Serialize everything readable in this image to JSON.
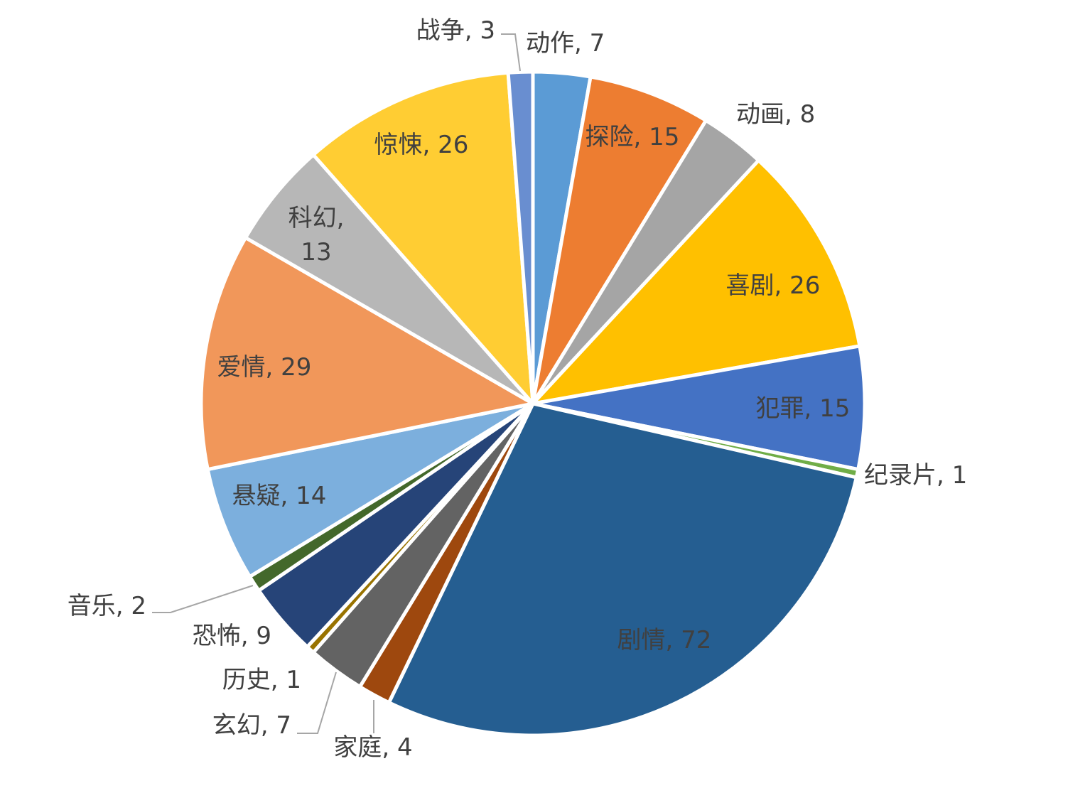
{
  "chart_data": {
    "type": "pie",
    "title": "",
    "start_angle_deg": 0,
    "direction": "clockwise",
    "label_format": "{name}, {value}",
    "slices": [
      {
        "name": "动作",
        "value": 7,
        "color": "#5b9bd5"
      },
      {
        "name": "探险",
        "value": 15,
        "color": "#ed7d31"
      },
      {
        "name": "动画",
        "value": 8,
        "color": "#a5a5a5"
      },
      {
        "name": "喜剧",
        "value": 26,
        "color": "#ffc000"
      },
      {
        "name": "犯罪",
        "value": 15,
        "color": "#4472c4"
      },
      {
        "name": "纪录片",
        "value": 1,
        "color": "#70ad47"
      },
      {
        "name": "剧情",
        "value": 72,
        "color": "#255e91"
      },
      {
        "name": "家庭",
        "value": 4,
        "color": "#9e480e"
      },
      {
        "name": "玄幻",
        "value": 7,
        "color": "#636363"
      },
      {
        "name": "历史",
        "value": 1,
        "color": "#997300"
      },
      {
        "name": "恐怖",
        "value": 9,
        "color": "#264478"
      },
      {
        "name": "音乐",
        "value": 2,
        "color": "#43682b"
      },
      {
        "name": "悬疑",
        "value": 14,
        "color": "#7cafdd"
      },
      {
        "name": "爱情",
        "value": 29,
        "color": "#f1975a"
      },
      {
        "name": "科幻",
        "value": 13,
        "color": "#b7b7b7"
      },
      {
        "name": "惊悚",
        "value": 26,
        "color": "#ffcd33"
      },
      {
        "name": "战争",
        "value": 3,
        "color": "#698ed0"
      }
    ]
  }
}
